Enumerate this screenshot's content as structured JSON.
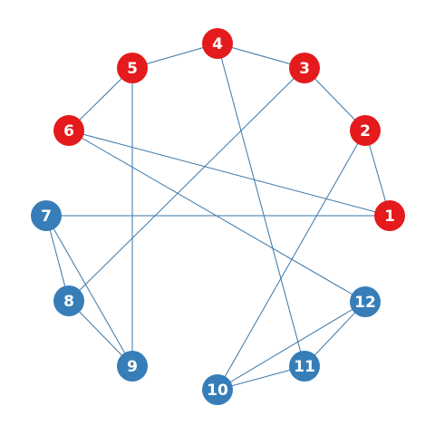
{
  "graph": {
    "colors": {
      "red": "#e41a1c",
      "blue": "#377eb8",
      "edge": "#3a76a8"
    },
    "nodes": [
      {
        "id": "1",
        "label": "1",
        "group": "red"
      },
      {
        "id": "2",
        "label": "2",
        "group": "red"
      },
      {
        "id": "3",
        "label": "3",
        "group": "red"
      },
      {
        "id": "4",
        "label": "4",
        "group": "red"
      },
      {
        "id": "5",
        "label": "5",
        "group": "red"
      },
      {
        "id": "6",
        "label": "6",
        "group": "red"
      },
      {
        "id": "7",
        "label": "7",
        "group": "blue"
      },
      {
        "id": "8",
        "label": "8",
        "group": "blue"
      },
      {
        "id": "9",
        "label": "9",
        "group": "blue"
      },
      {
        "id": "10",
        "label": "10",
        "group": "blue"
      },
      {
        "id": "11",
        "label": "11",
        "group": "blue"
      },
      {
        "id": "12",
        "label": "12",
        "group": "blue"
      }
    ],
    "edges": [
      [
        "1",
        "2"
      ],
      [
        "2",
        "3"
      ],
      [
        "3",
        "4"
      ],
      [
        "4",
        "5"
      ],
      [
        "5",
        "6"
      ],
      [
        "6",
        "1"
      ],
      [
        "7",
        "1"
      ],
      [
        "3",
        "8"
      ],
      [
        "5",
        "9"
      ],
      [
        "4",
        "11"
      ],
      [
        "2",
        "10"
      ],
      [
        "6",
        "12"
      ],
      [
        "7",
        "8"
      ],
      [
        "7",
        "9"
      ],
      [
        "8",
        "9"
      ],
      [
        "10",
        "11"
      ],
      [
        "11",
        "12"
      ],
      [
        "10",
        "12"
      ]
    ]
  }
}
